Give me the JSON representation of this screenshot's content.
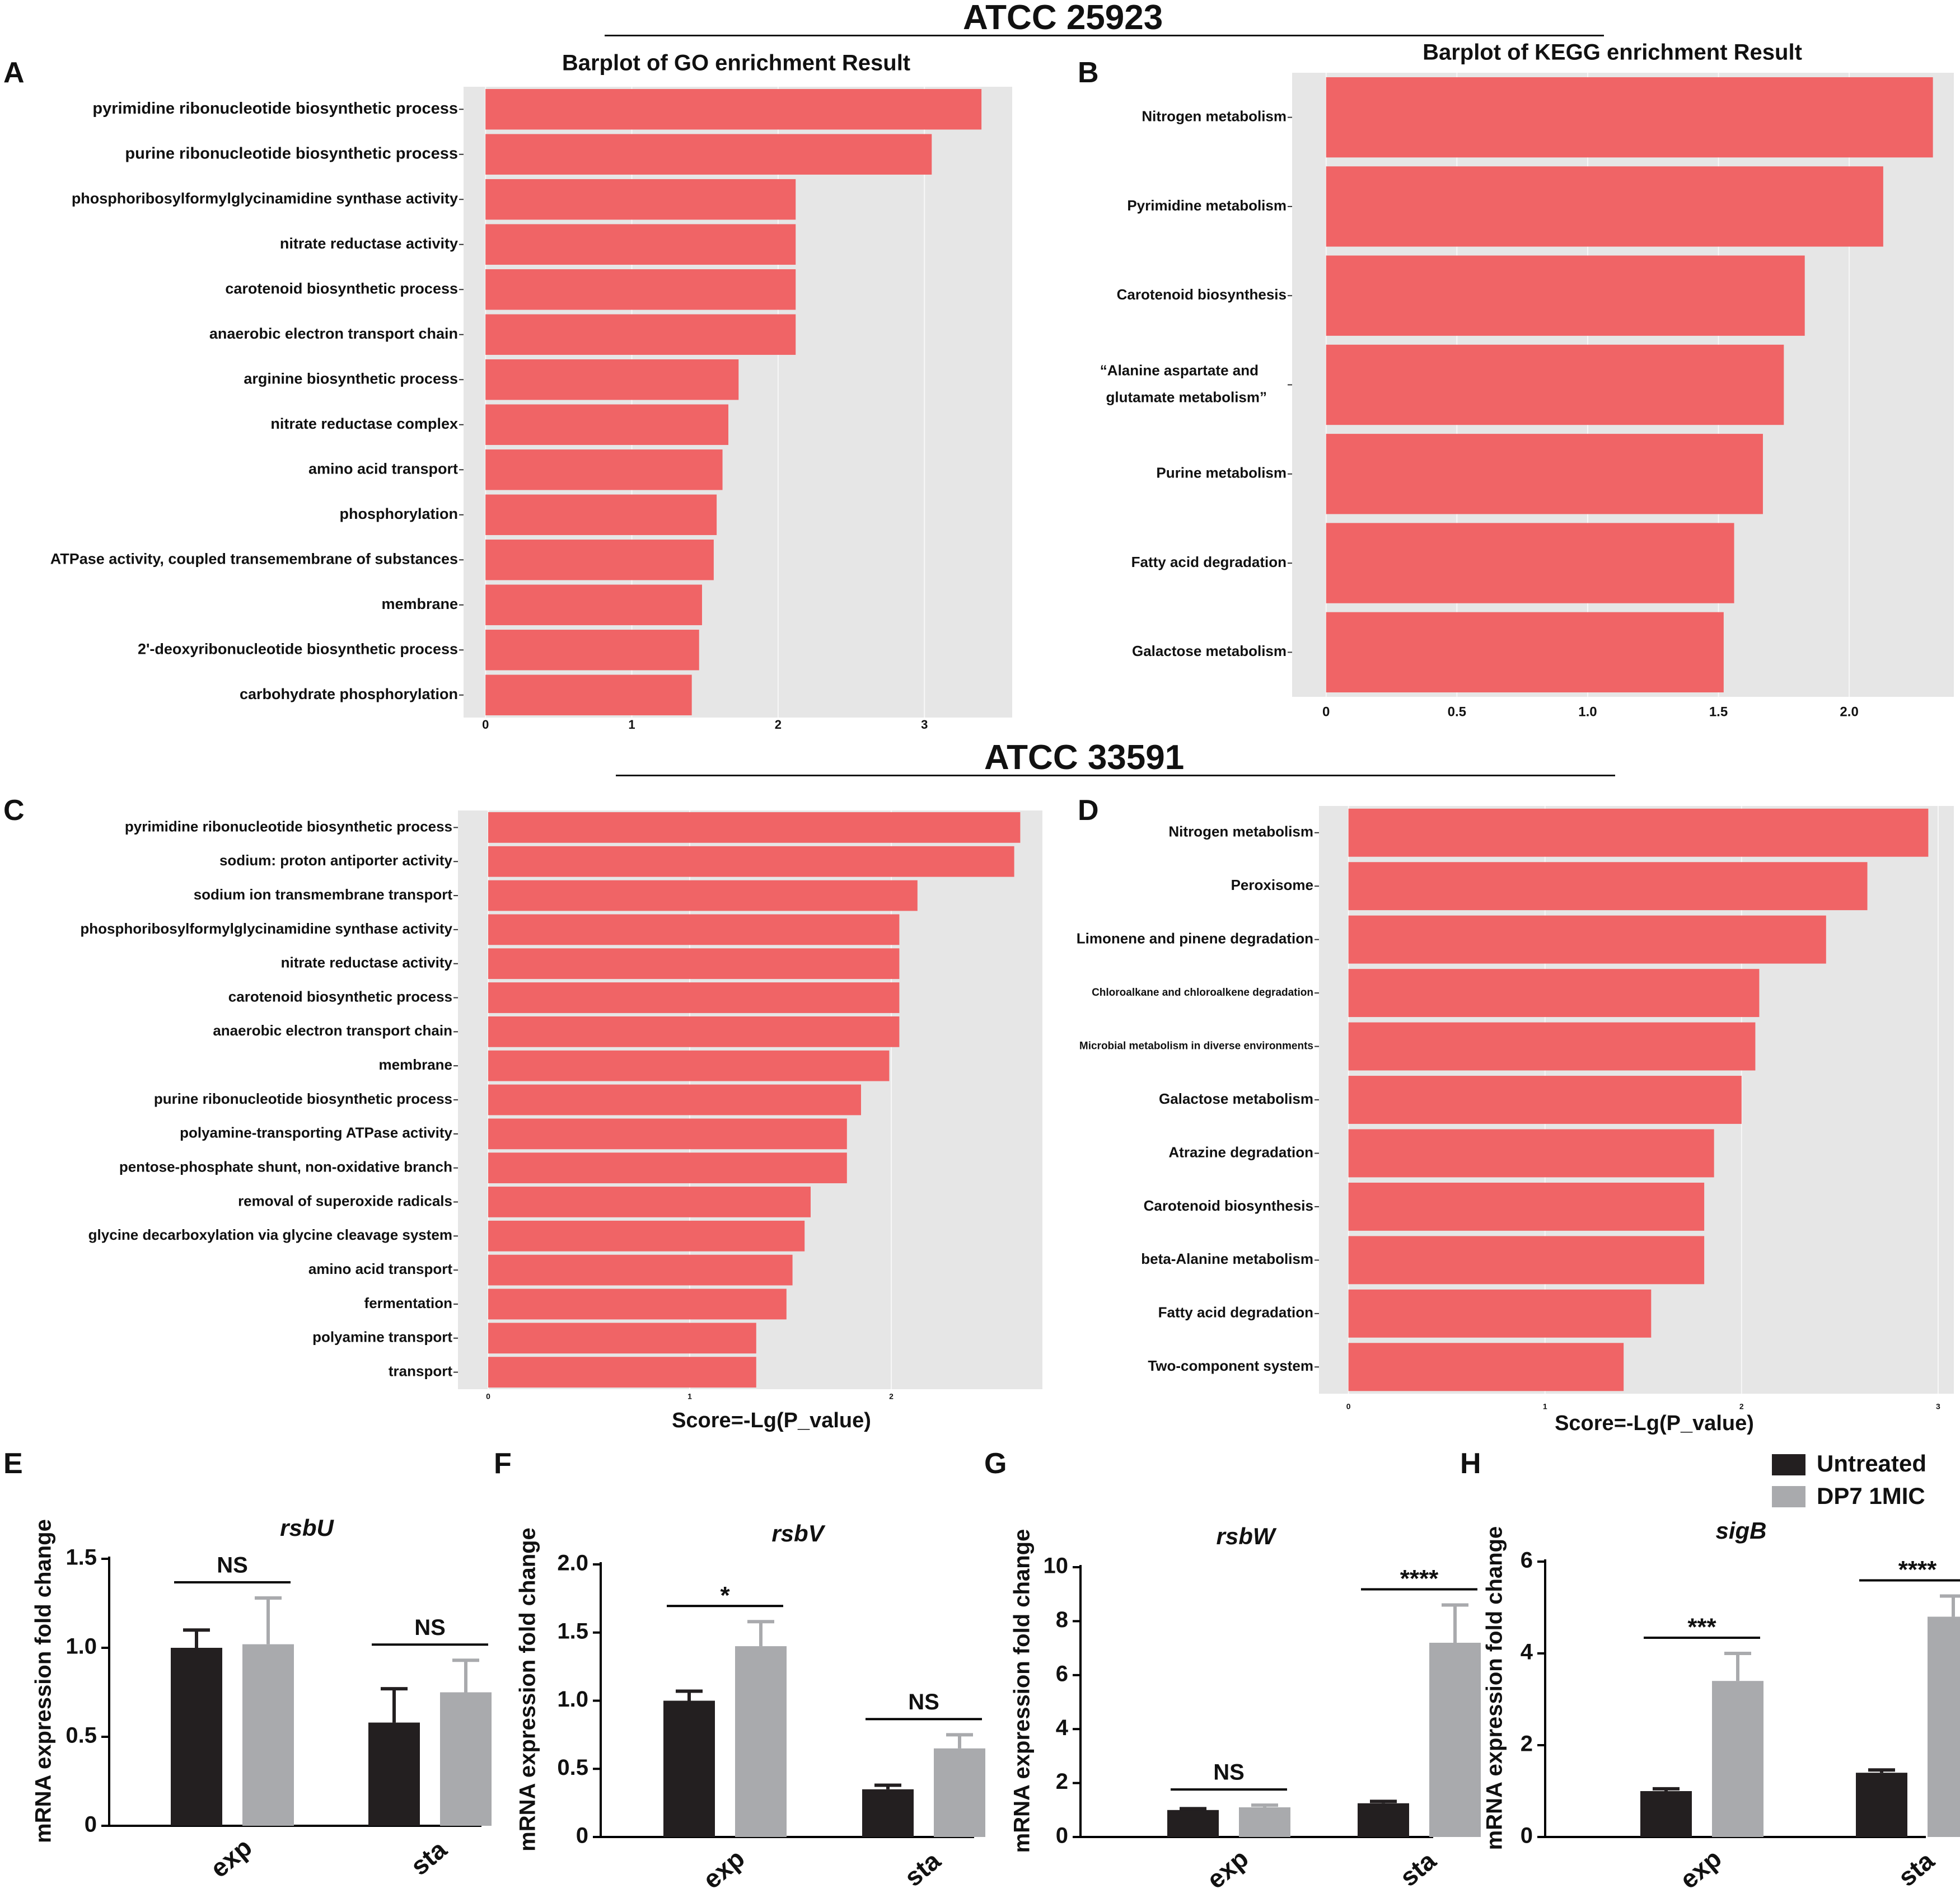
{
  "header_top": "ATCC 25923",
  "header_mid": "ATCC 33591",
  "panel_labels": {
    "A": "A",
    "B": "B",
    "C": "C",
    "D": "D",
    "E": "E",
    "F": "F",
    "G": "G",
    "H": "H"
  },
  "colors": {
    "bar": "#f06466",
    "panel_bg": "#e6e6e6",
    "grid": "#f7f7f7",
    "untreated": "#231f20",
    "dp7": "#a9aaad",
    "text": "#111111"
  },
  "legend": {
    "untreated": "Untreated",
    "dp7": "DP7 1MIC"
  },
  "chart_data": [
    {
      "id": "A",
      "type": "bar",
      "orientation": "horizontal",
      "title": "Barplot of GO enrichment Result",
      "xlabel": "",
      "ylabel": "",
      "xlim": [
        -0.15,
        3.6
      ],
      "xticks": [
        0,
        1,
        2,
        3
      ],
      "xtick_labels": [
        "0",
        "1",
        "2",
        "3"
      ],
      "categories": [
        "pyrimidine ribonucleotide biosynthetic process",
        "purine ribonucleotide biosynthetic process",
        "phosphoribosylformylglycinamidine synthase activity",
        "nitrate reductase activity",
        "carotenoid biosynthetic process",
        "anaerobic electron transport chain",
        "arginine biosynthetic process",
        "nitrate reductase complex",
        "amino acid transport",
        "phosphorylation",
        "ATPase activity, coupled transemembrane of substances",
        "membrane",
        "2'-deoxyribonucleotide biosynthetic process",
        "carbohydrate phosphorylation"
      ],
      "values": [
        3.39,
        3.05,
        2.12,
        2.12,
        2.12,
        2.12,
        1.73,
        1.66,
        1.62,
        1.58,
        1.56,
        1.48,
        1.46,
        1.41
      ]
    },
    {
      "id": "B",
      "type": "bar",
      "orientation": "horizontal",
      "title": "Barplot of KEGG enrichment Result",
      "xlabel": "",
      "ylabel": "",
      "xlim": [
        -0.13,
        2.4
      ],
      "xticks": [
        0,
        0.5,
        1.0,
        1.5,
        2.0
      ],
      "xtick_labels": [
        "0",
        "0.5",
        "1.0",
        "1.5",
        "2.0"
      ],
      "categories": [
        "Nitrogen metabolism",
        "Pyrimidine metabolism",
        "Carotenoid biosynthesis",
        "“Alanine aspartate and glutamate metabolism”",
        "Purine metabolism",
        "Fatty acid degradation",
        "Galactose metabolism"
      ],
      "values": [
        2.32,
        2.13,
        1.83,
        1.75,
        1.67,
        1.56,
        1.52
      ]
    },
    {
      "id": "C",
      "type": "bar",
      "orientation": "horizontal",
      "title": "",
      "xlabel": "Score=-Lg(P_value)",
      "ylabel": "",
      "xlim": [
        -0.15,
        2.75
      ],
      "xticks": [
        0,
        1,
        2
      ],
      "xtick_labels": [
        "0",
        "1",
        "2"
      ],
      "categories": [
        "pyrimidine ribonucleotide biosynthetic process",
        "sodium: proton antiporter activity",
        "sodium ion transmembrane transport",
        "phosphoribosylformylglycinamidine synthase activity",
        "nitrate reductase activity",
        "carotenoid biosynthetic process",
        "anaerobic electron transport chain",
        "membrane",
        "purine ribonucleotide biosynthetic process",
        "polyamine-transporting ATPase activity",
        "pentose-phosphate shunt, non-oxidative branch",
        "removal of superoxide radicals",
        "glycine decarboxylation via glycine cleavage system",
        "amino acid transport",
        "fermentation",
        "polyamine transport",
        "transport"
      ],
      "values": [
        2.64,
        2.61,
        2.13,
        2.04,
        2.04,
        2.04,
        2.04,
        1.99,
        1.85,
        1.78,
        1.78,
        1.6,
        1.57,
        1.51,
        1.48,
        1.33,
        1.33
      ]
    },
    {
      "id": "D",
      "type": "bar",
      "orientation": "horizontal",
      "title": "",
      "xlabel": "Score=-Lg(P_value)",
      "ylabel": "",
      "xlim": [
        -0.15,
        3.08
      ],
      "xticks": [
        0,
        1,
        2,
        3
      ],
      "xtick_labels": [
        "0",
        "1",
        "2",
        "3"
      ],
      "categories": [
        "Nitrogen metabolism",
        "Peroxisome",
        "Limonene and pinene degradation",
        "Chloroalkane and chloroalkene degradation",
        "Microbial metabolism in diverse environments",
        "Galactose metabolism",
        "Atrazine degradation",
        "Carotenoid biosynthesis",
        "beta-Alanine metabolism",
        "Fatty acid degradation",
        "Two-component system"
      ],
      "values": [
        2.95,
        2.64,
        2.43,
        2.09,
        2.07,
        2.0,
        1.86,
        1.81,
        1.81,
        1.54,
        1.4
      ]
    },
    {
      "id": "E",
      "type": "bar",
      "title": "rsbU",
      "ylabel": "mRNA expression fold change",
      "xlabel": "",
      "categories": [
        "exp",
        "sta"
      ],
      "ylim": [
        0,
        1.5
      ],
      "yticks": [
        0,
        0.5,
        1.0,
        1.5
      ],
      "ytick_labels": [
        "0",
        "0.5",
        "1.0",
        "1.5"
      ],
      "series": [
        {
          "name": "Untreated",
          "values": [
            1.0,
            0.58
          ],
          "errors": [
            0.1,
            0.19
          ]
        },
        {
          "name": "DP7 1MIC",
          "values": [
            1.02,
            0.75
          ],
          "errors": [
            0.26,
            0.18
          ]
        }
      ],
      "significance": [
        "NS",
        "NS"
      ]
    },
    {
      "id": "F",
      "type": "bar",
      "title": "rsbV",
      "ylabel": "mRNA expression fold change",
      "xlabel": "",
      "categories": [
        "exp",
        "sta"
      ],
      "ylim": [
        0,
        2.0
      ],
      "yticks": [
        0,
        0.5,
        1.0,
        1.5,
        2.0
      ],
      "ytick_labels": [
        "0",
        "0.5",
        "1.0",
        "1.5",
        "2.0"
      ],
      "series": [
        {
          "name": "Untreated",
          "values": [
            1.0,
            0.35
          ],
          "errors": [
            0.07,
            0.03
          ]
        },
        {
          "name": "DP7 1MIC",
          "values": [
            1.4,
            0.65
          ],
          "errors": [
            0.18,
            0.1
          ]
        }
      ],
      "significance": [
        "*",
        "NS"
      ]
    },
    {
      "id": "G",
      "type": "bar",
      "title": "rsbW",
      "ylabel": "mRNA expression fold change",
      "xlabel": "",
      "categories": [
        "exp",
        "sta"
      ],
      "ylim": [
        0,
        10
      ],
      "yticks": [
        0,
        2,
        4,
        6,
        8,
        10
      ],
      "ytick_labels": [
        "0",
        "2",
        "4",
        "6",
        "8",
        "10"
      ],
      "series": [
        {
          "name": "Untreated",
          "values": [
            1.0,
            1.25
          ],
          "errors": [
            0.05,
            0.07
          ]
        },
        {
          "name": "DP7 1MIC",
          "values": [
            1.1,
            7.2
          ],
          "errors": [
            0.08,
            1.4
          ]
        }
      ],
      "significance": [
        "NS",
        "****"
      ]
    },
    {
      "id": "H",
      "type": "bar",
      "title": "sigB",
      "ylabel": "mRNA expression fold change",
      "xlabel": "",
      "categories": [
        "exp",
        "sta"
      ],
      "ylim": [
        0,
        6
      ],
      "yticks": [
        0,
        2,
        4,
        6
      ],
      "ytick_labels": [
        "0",
        "2",
        "4",
        "6"
      ],
      "series": [
        {
          "name": "Untreated",
          "values": [
            1.0,
            1.4
          ],
          "errors": [
            0.05,
            0.06
          ]
        },
        {
          "name": "DP7 1MIC",
          "values": [
            3.4,
            4.8
          ],
          "errors": [
            0.6,
            0.45
          ]
        }
      ],
      "significance": [
        "***",
        "****"
      ]
    }
  ]
}
